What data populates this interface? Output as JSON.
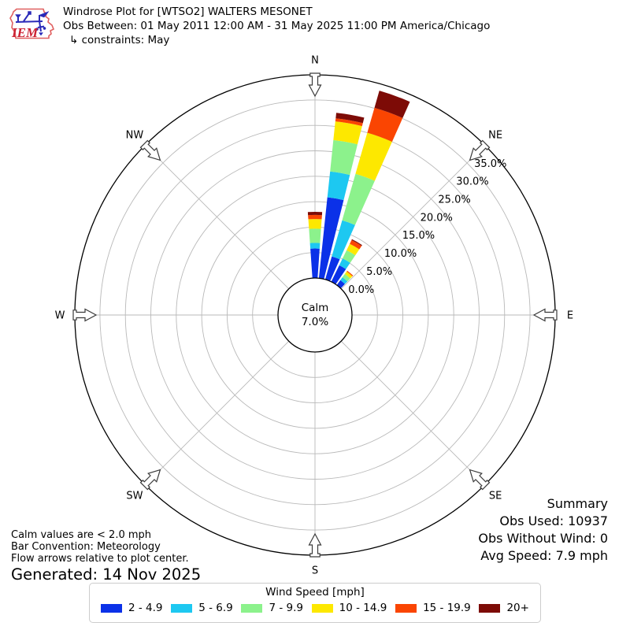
{
  "header": {
    "title": "Windrose Plot for [WTSO2] WALTERS MESONET",
    "subtitle": "Obs Between: 01 May 2011 12:00 AM - 31 May 2025 11:00 PM America/Chicago",
    "constraints": "↳ constraints: May",
    "logo_text": "IEM"
  },
  "summary": {
    "title": "Summary",
    "obs_used": "Obs Used: 10937",
    "obs_without_wind": "Obs Without Wind: 0",
    "avg_speed": "Avg Speed: 7.9 mph"
  },
  "footnotes": {
    "calm_note": "Calm values are < 2.0 mph",
    "convention_note": "Bar Convention: Meteorology",
    "arrows_note": "Flow arrows relative to plot center.",
    "generated": "Generated: 14 Nov 2025"
  },
  "legend": {
    "title": "Wind Speed [mph]"
  },
  "chart_data": {
    "type": "windrose",
    "station": "[WTSO2] WALTERS MESONET",
    "units": "mph",
    "obs_used": 10937,
    "obs_without_wind": 0,
    "avg_speed_mph": 7.9,
    "calm": {
      "line1": "Calm",
      "line2": "7.0%",
      "percent": 7.0,
      "threshold_mph": 2.0
    },
    "r_axis": {
      "ticks": [
        0,
        5,
        10,
        15,
        20,
        25,
        30,
        35
      ],
      "tick_labels": [
        "0.0%",
        "5.0%",
        "10.0%",
        "15.0%",
        "20.0%",
        "25.0%",
        "30.0%",
        "35.0%"
      ],
      "rmax_percent": 40,
      "label_angle_deg": 45,
      "grid": true
    },
    "compass": [
      "N",
      "NE",
      "E",
      "SE",
      "S",
      "SW",
      "W",
      "NW"
    ],
    "speed_bins": [
      {
        "label": "2 - 4.9",
        "color": "#0b31e8"
      },
      {
        "label": "5 - 6.9",
        "color": "#1dc8f1"
      },
      {
        "label": "7 - 9.9",
        "color": "#8cf28c"
      },
      {
        "label": "10 - 14.9",
        "color": "#fde800"
      },
      {
        "label": "15 - 19.9",
        "color": "#fa4502"
      },
      {
        "label": "20+",
        "color": "#7d0b06"
      }
    ],
    "sector_deg": 10,
    "bar_width_deg": 8,
    "bars": [
      {
        "dir_deg": 0,
        "segments": [
          5.8,
          1.1,
          2.8,
          1.9,
          0.8,
          0.6
        ],
        "total": 13.0
      },
      {
        "dir_deg": 10,
        "segments": [
          16.0,
          5.1,
          6.2,
          3.7,
          0.6,
          1.1
        ],
        "total": 32.7
      },
      {
        "dir_deg": 20,
        "segments": [
          4.7,
          7.4,
          9.5,
          8.4,
          5.1,
          3.5
        ],
        "total": 38.6
      },
      {
        "dir_deg": 30,
        "segments": [
          3.6,
          1.5,
          1.8,
          1.4,
          0.8,
          0.2
        ],
        "total": 9.3
      },
      {
        "dir_deg": 40,
        "segments": [
          1.2,
          0.7,
          0.8,
          0.6,
          0.2,
          0.0
        ],
        "total": 3.5
      }
    ]
  }
}
